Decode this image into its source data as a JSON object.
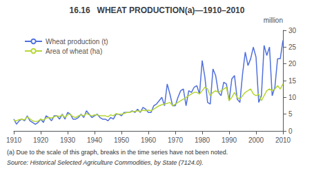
{
  "chart_data": {
    "type": "line",
    "title": "16.16   WHEAT PRODUCTION(a)—1910–2010",
    "ylabel": "million",
    "annotations": [
      "(a) Due to the scale of this graph, breaks in the time series have not been noted.",
      "Source: Historical Selected Agriculture Commodities, by State (7124.0)."
    ],
    "x": [
      1910,
      1911,
      1912,
      1913,
      1914,
      1915,
      1916,
      1917,
      1918,
      1919,
      1920,
      1921,
      1922,
      1923,
      1924,
      1925,
      1926,
      1927,
      1928,
      1929,
      1930,
      1931,
      1932,
      1933,
      1934,
      1935,
      1936,
      1937,
      1938,
      1939,
      1940,
      1941,
      1942,
      1943,
      1944,
      1945,
      1946,
      1947,
      1948,
      1949,
      1950,
      1951,
      1952,
      1953,
      1954,
      1955,
      1956,
      1957,
      1958,
      1959,
      1960,
      1961,
      1962,
      1963,
      1964,
      1965,
      1966,
      1967,
      1968,
      1969,
      1970,
      1971,
      1972,
      1973,
      1974,
      1975,
      1976,
      1977,
      1978,
      1979,
      1980,
      1981,
      1982,
      1983,
      1984,
      1985,
      1986,
      1987,
      1988,
      1989,
      1990,
      1991,
      1992,
      1993,
      1994,
      1995,
      1996,
      1997,
      1998,
      1999,
      2000,
      2001,
      2002,
      2003,
      2004,
      2005,
      2006,
      2007,
      2008,
      2009,
      2010
    ],
    "series": [
      {
        "name": "Wheat production (t)",
        "values": [
          3.5,
          2.0,
          3.0,
          3.5,
          3.0,
          4.5,
          3.0,
          2.5,
          2.0,
          2.5,
          3.5,
          2.5,
          4.5,
          4.0,
          3.0,
          4.5,
          4.5,
          3.5,
          5.0,
          3.5,
          5.5,
          5.0,
          3.5,
          3.5,
          4.0,
          5.0,
          4.0,
          6.0,
          5.0,
          4.0,
          4.5,
          5.0,
          4.0,
          3.5,
          3.5,
          3.0,
          4.0,
          3.5,
          5.0,
          5.0,
          4.5,
          5.5,
          5.5,
          5.5,
          6.0,
          5.5,
          6.5,
          5.5,
          7.0,
          6.5,
          5.5,
          5.5,
          7.5,
          8.0,
          9.0,
          10.0,
          7.5,
          14.0,
          11.0,
          7.5,
          7.5,
          10.0,
          12.0,
          12.5,
          7.5,
          12.0,
          11.5,
          13.0,
          13.5,
          11.0,
          21.0,
          16.0,
          8.5,
          8.0,
          18.5,
          16.5,
          11.5,
          10.5,
          14.5,
          14.0,
          9.0,
          15.5,
          16.5,
          9.5,
          8.5,
          17.0,
          23.5,
          19.5,
          21.5,
          25.0,
          22.0,
          8.5,
          10.5,
          25.5,
          22.5,
          25.0,
          10.5,
          13.0,
          21.5,
          21.5,
          27.0
        ]
      },
      {
        "name": "Area of wheat (ha)",
        "values": [
          3.2,
          3.0,
          3.4,
          3.5,
          3.3,
          4.2,
          3.6,
          3.0,
          2.8,
          2.9,
          3.5,
          3.2,
          3.8,
          4.0,
          3.8,
          4.2,
          4.5,
          4.3,
          4.8,
          4.0,
          4.8,
          5.0,
          4.2,
          4.0,
          4.5,
          4.8,
          4.5,
          5.2,
          4.8,
          4.5,
          4.8,
          4.8,
          4.5,
          4.5,
          4.5,
          4.2,
          4.8,
          4.5,
          5.2,
          5.0,
          5.0,
          5.2,
          5.5,
          5.5,
          5.8,
          5.8,
          6.0,
          5.8,
          6.2,
          6.0,
          6.2,
          6.0,
          6.5,
          7.0,
          7.5,
          7.8,
          8.0,
          8.2,
          8.5,
          7.5,
          8.0,
          8.5,
          9.0,
          9.5,
          10.0,
          10.5,
          11.0,
          11.5,
          11.5,
          11.0,
          12.0,
          13.0,
          12.5,
          10.5,
          11.5,
          12.0,
          11.5,
          12.0,
          12.5,
          13.0,
          9.0,
          10.0,
          11.5,
          10.0,
          9.5,
          10.5,
          11.5,
          12.0,
          12.5,
          11.0,
          10.5,
          11.0,
          9.0,
          10.5,
          12.0,
          12.5,
          12.0,
          12.5,
          13.5,
          12.5,
          14.0
        ]
      }
    ],
    "xlim": [
      1910,
      2010
    ],
    "xticks": [
      1910,
      1920,
      1930,
      1940,
      1950,
      1960,
      1970,
      1980,
      1990,
      2000,
      2010
    ],
    "ylim": [
      0,
      30
    ],
    "yticks": [
      0,
      5,
      10,
      15,
      20,
      25,
      30
    ],
    "grid": false,
    "legend": "upper left"
  }
}
